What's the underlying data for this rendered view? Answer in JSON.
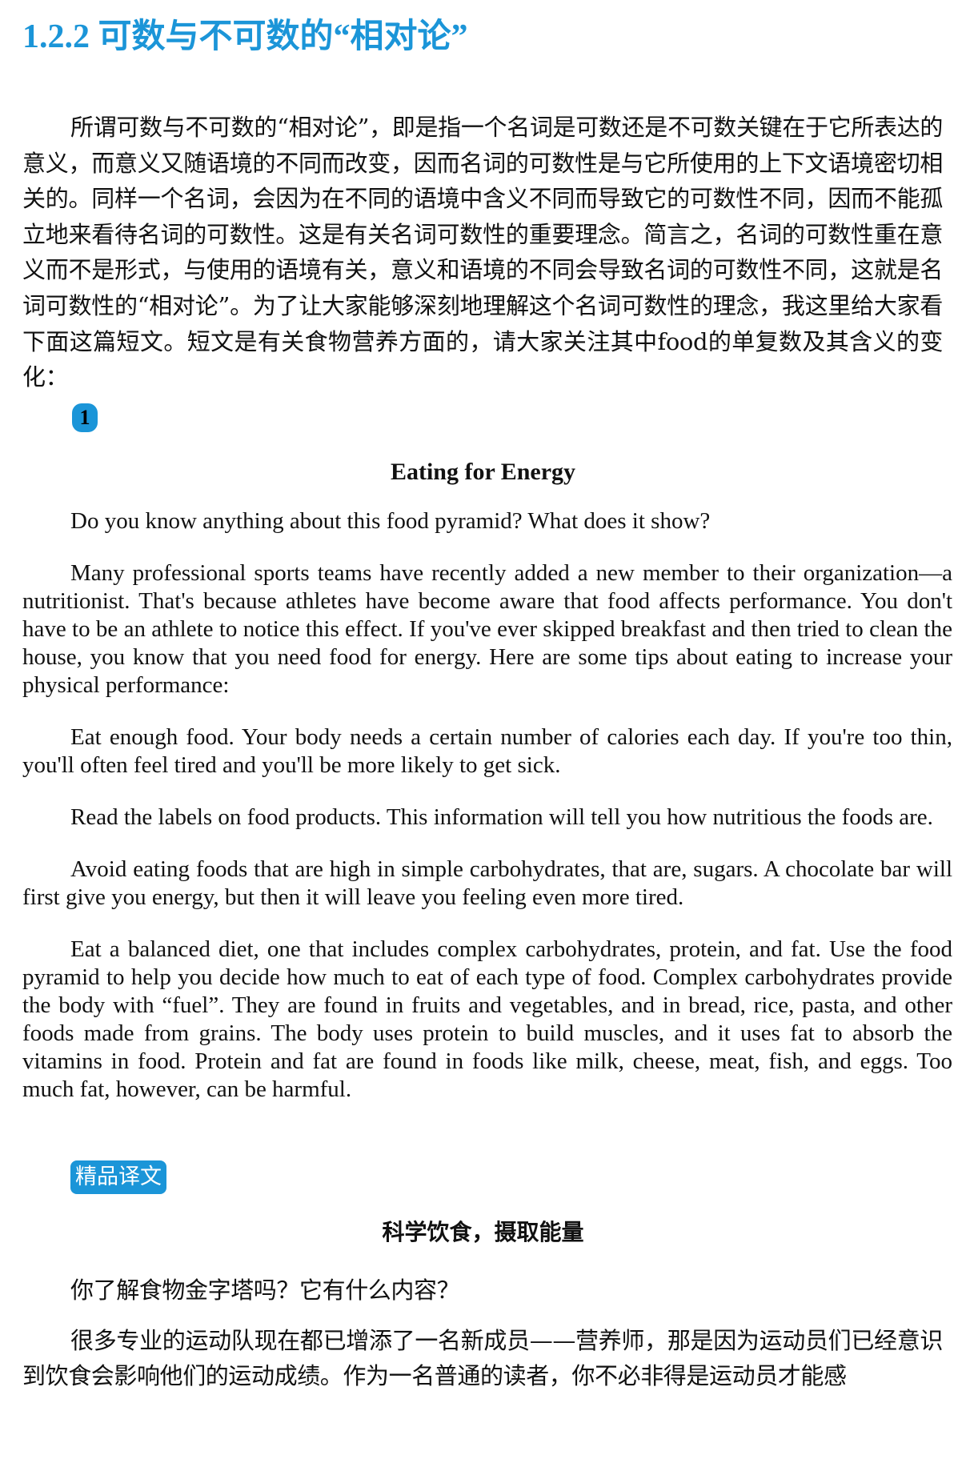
{
  "section": {
    "heading": "1.2.2 可数与不可数的“相对论”",
    "intro": "所谓可数与不可数的“相对论”，即是指一个名词是可数还是不可数关键在于它所表达的意义，而意义又随语境的不同而改变，因而名词的可数性是与它所使用的上下文语境密切相关的。同样一个名词，会因为在不同的语境中含义不同而导致它的可数性不同，因而不能孤立地来看待名词的可数性。这是有关名词可数性的重要理念。简言之，名词的可数性重在意义而不是形式，与使用的语境有关，意义和语境的不同会导致名词的可数性不同，这就是名词可数性的“相对论”。为了让大家能够深刻地理解这个名词可数性的理念，我这里给大家看下面这篇短文。短文是有关食物营养方面的，请大家关注其中food的单复数及其含义的变化："
  },
  "passage": {
    "number_badge": "1",
    "title": "Eating for Energy",
    "paragraphs": [
      "Do you know anything about this food pyramid? What does it show?",
      "Many professional sports teams have recently added a new member to their organization—a nutritionist. That's because athletes have become aware that food affects performance. You don't have to be an athlete to notice this effect. If you've ever skipped breakfast and then tried to clean the house, you know that you need food for energy. Here are some tips about eating to increase your physical performance:",
      "Eat enough food. Your body needs a certain number of calories each day. If you're too thin, you'll often feel tired and you'll be more likely to get sick.",
      "Read the labels on food products. This information will tell you how nutritious the foods are.",
      "Avoid eating foods that are high in simple carbohydrates, that are, sugars. A chocolate bar will first give you energy, but then it will leave you feeling even more tired.",
      "Eat a balanced diet, one that includes complex carbohydrates, protein, and fat. Use the food pyramid to help you decide how much to eat of each type of food. Complex carbohydrates provide the body with “fuel”. They are found in fruits and vegetables, and in bread, rice, pasta, and other foods made from grains. The body uses protein to build muscles, and it uses fat to absorb the vitamins in food. Protein and fat are found in foods like milk, cheese, meat, fish, and eggs. Too much fat, however, can be harmful."
    ]
  },
  "translation": {
    "badge": "精品译文",
    "title": "科学饮食，摄取能量",
    "paragraphs": [
      "你了解食物金字塔吗？它有什么内容？",
      "很多专业的运动队现在都已增添了一名新成员——营养师，那是因为运动员们已经意识到饮食会影响他们的运动成绩。作为一名普通的读者，你不必非得是运动员才能感"
    ]
  },
  "colors": {
    "accent": "#1b95d8",
    "text": "#111111"
  }
}
